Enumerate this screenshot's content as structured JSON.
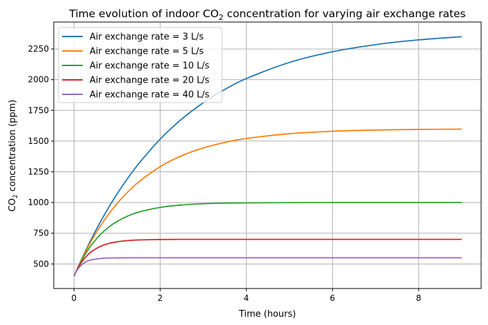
{
  "chart_data": {
    "type": "line",
    "title": {
      "pre": "Time evolution of indoor CO",
      "sub": "2",
      "post": " concentration for varying air exchange rates"
    },
    "xlabel": "Time (hours)",
    "ylabel": {
      "pre": "CO",
      "sub": "2",
      "post": " concentration (ppm)"
    },
    "xlim": [
      -0.47,
      9.45
    ],
    "ylim": [
      300,
      2469
    ],
    "xticks": [
      0,
      2,
      4,
      6,
      8
    ],
    "yticks": [
      500,
      750,
      1000,
      1250,
      1500,
      1750,
      2000,
      2250
    ],
    "grid": true,
    "legend_position": "top-left",
    "x": [
      0,
      0.05,
      0.1,
      0.2,
      0.3,
      0.4,
      0.6,
      0.8,
      1,
      1.25,
      1.5,
      2,
      2.5,
      3,
      3.5,
      4,
      5,
      6,
      7,
      8,
      9
    ],
    "series": [
      {
        "name": "Air exchange rate = 3 L/s",
        "color": "#1f77b4",
        "values": [
          400,
          440,
          480,
          557,
          630,
          701,
          834,
          957,
          1070,
          1199,
          1315,
          1516,
          1679,
          1812,
          1920,
          2009,
          2140,
          2227,
          2285,
          2324,
          2349
        ]
      },
      {
        "name": "Air exchange rate = 5 L/s",
        "color": "#ff7f0e",
        "values": [
          400,
          440,
          479,
          553,
          621,
          686,
          802,
          904,
          992,
          1087,
          1167,
          1292,
          1381,
          1444,
          1489,
          1521,
          1560,
          1580,
          1590,
          1595,
          1597
        ]
      },
      {
        "name": "Air exchange rate = 10 L/s",
        "color": "#2ca02c",
        "values": [
          400,
          439,
          476,
          543,
          601,
          652,
          735,
          798,
          846,
          890,
          922,
          960,
          980,
          990,
          995,
          997,
          999,
          1000,
          1000,
          1000,
          1000
        ]
      },
      {
        "name": "Air exchange rate = 20 L/s",
        "color": "#d62728",
        "values": [
          400,
          438,
          471,
          526,
          567,
          599,
          641,
          666,
          680,
          690,
          695,
          699,
          700,
          700,
          700,
          700,
          700,
          700,
          700,
          700,
          700
        ]
      },
      {
        "name": "Air exchange rate = 40 L/s",
        "color": "#9467bd",
        "values": [
          400,
          436,
          463,
          499,
          521,
          533,
          544,
          548,
          549,
          550,
          550,
          550,
          550,
          550,
          550,
          550,
          550,
          550,
          550,
          550,
          550
        ]
      }
    ]
  }
}
